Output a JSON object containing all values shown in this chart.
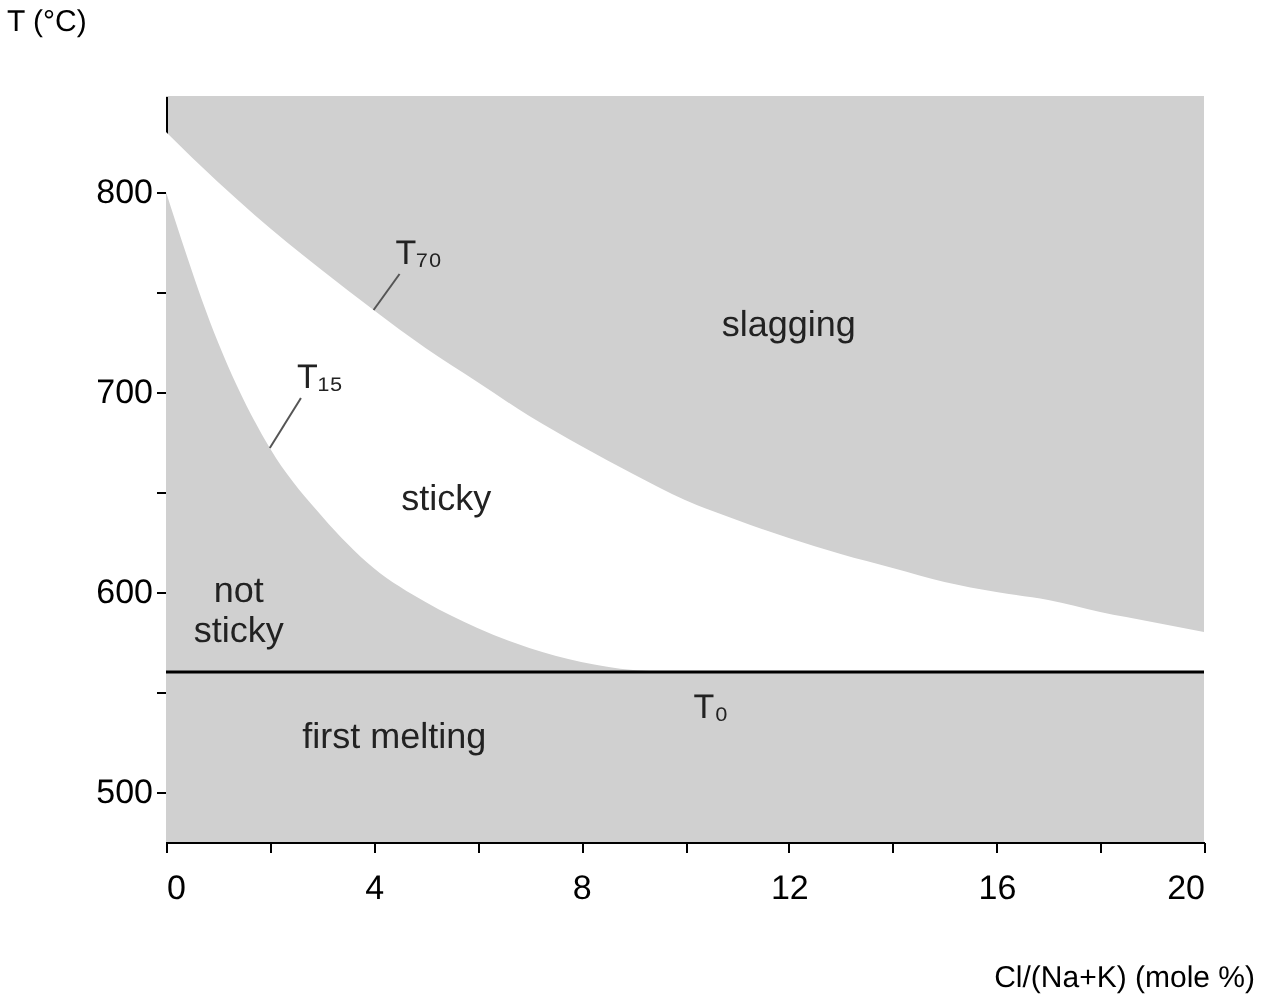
{
  "chart_data": {
    "type": "area",
    "xlabel": "Cl/(Na+K) (mole %)",
    "ylabel": "T (°C)",
    "x": [
      0,
      1,
      2,
      3,
      4,
      5,
      6,
      7,
      8,
      9,
      10,
      11,
      12,
      13,
      14,
      15,
      16,
      17,
      18,
      19,
      20
    ],
    "series": [
      {
        "name": "T₇₀",
        "color": "#ffffff",
        "values": [
          830,
          805,
          782,
          761,
          741,
          722,
          705,
          688,
          673,
          659,
          646,
          636,
          627,
          619,
          612,
          605,
          600,
          596,
          590,
          585,
          580
        ]
      },
      {
        "name": "T₁₅",
        "color": "#d0d0d0",
        "values": [
          800,
          725,
          672,
          638,
          612,
          595,
          582,
          572,
          565,
          561,
          560,
          560,
          560,
          560,
          560,
          560,
          560,
          560,
          560,
          560,
          560
        ]
      }
    ],
    "xlim": [
      0,
      20
    ],
    "ylim": [
      475,
      848
    ],
    "xticks": [
      0,
      {
        "value": 2,
        "label": null
      },
      4,
      {
        "value": 6,
        "label": null
      },
      8,
      {
        "value": 10,
        "label": null
      },
      12,
      {
        "value": 14,
        "label": null
      },
      16,
      {
        "value": 18,
        "label": null
      },
      20
    ],
    "yticks": [
      500,
      {
        "value": 550,
        "label": null
      },
      600,
      {
        "value": 650,
        "label": null
      },
      700,
      {
        "value": 750,
        "label": null
      },
      800
    ],
    "ref_lines": [
      {
        "axis": "y",
        "value": 560,
        "label": "T₀",
        "color": "#000000"
      }
    ],
    "annotations": [
      "slagging",
      "sticky",
      "not\nsticky",
      "first melting"
    ],
    "grid": false
  }
}
